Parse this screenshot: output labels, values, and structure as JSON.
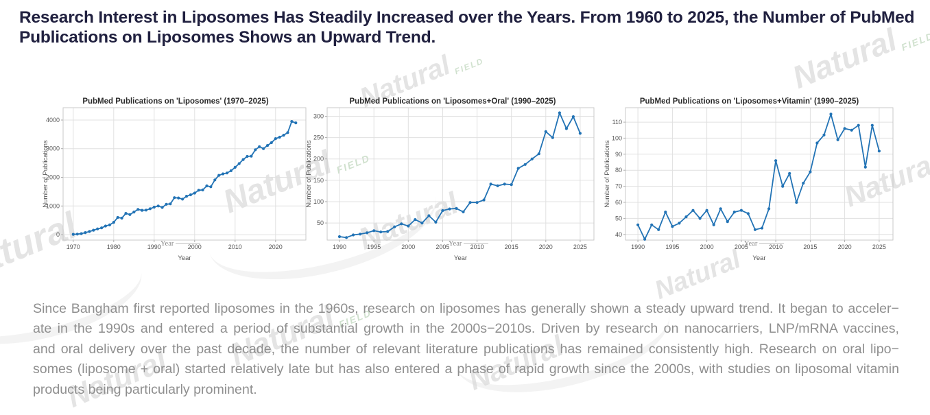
{
  "header": {
    "title": "Research Interest in Liposomes Has Steadily Increased over the Years. From 1960 to 2025, the Number of PubMed Publications on Liposomes Shows an Upward Trend.",
    "color": "#20203f"
  },
  "watermark": {
    "text": "Natural",
    "sub": "FIELD"
  },
  "chart_data": [
    {
      "type": "line",
      "title": "PubMed Publications on 'Liposomes' (1970–2025)",
      "xlabel": "Year",
      "ylabel": "Number of Publications",
      "line_color": "#2273b5",
      "grid": true,
      "years": [
        1970,
        1971,
        1972,
        1973,
        1974,
        1975,
        1976,
        1977,
        1978,
        1979,
        1980,
        1981,
        1982,
        1983,
        1984,
        1985,
        1986,
        1987,
        1988,
        1989,
        1990,
        1991,
        1992,
        1993,
        1994,
        1995,
        1996,
        1997,
        1998,
        1999,
        2000,
        2001,
        2002,
        2003,
        2004,
        2005,
        2006,
        2007,
        2008,
        2009,
        2010,
        2011,
        2012,
        2013,
        2014,
        2015,
        2016,
        2017,
        2018,
        2019,
        2020,
        2021,
        2022,
        2023,
        2024,
        2025
      ],
      "values": [
        10,
        18,
        35,
        70,
        110,
        155,
        200,
        235,
        300,
        340,
        430,
        600,
        575,
        740,
        700,
        790,
        880,
        850,
        855,
        905,
        960,
        1000,
        950,
        1060,
        1075,
        1290,
        1280,
        1240,
        1340,
        1390,
        1450,
        1550,
        1560,
        1700,
        1670,
        1910,
        2070,
        2120,
        2150,
        2230,
        2350,
        2480,
        2620,
        2730,
        2740,
        2960,
        3070,
        3000,
        3110,
        3210,
        3350,
        3400,
        3470,
        3560,
        3950,
        3900
      ],
      "xticks": [
        1970,
        1980,
        1990,
        2000,
        2010,
        2020
      ],
      "yticks": [
        0,
        1000,
        2000,
        3000,
        4000
      ],
      "xlim": [
        1967.5,
        2027.5
      ],
      "ylim": [
        -190,
        4430
      ]
    },
    {
      "type": "line",
      "title": "PubMed Publications on 'Liposomes+Oral' (1990–2025)",
      "xlabel": "Year",
      "ylabel": "Number of Publications",
      "line_color": "#2273b5",
      "grid": true,
      "years": [
        1990,
        1991,
        1992,
        1993,
        1994,
        1995,
        1996,
        1997,
        1998,
        1999,
        2000,
        2001,
        2002,
        2003,
        2004,
        2005,
        2006,
        2007,
        2008,
        2009,
        2010,
        2011,
        2012,
        2013,
        2014,
        2015,
        2016,
        2017,
        2018,
        2019,
        2020,
        2021,
        2022,
        2023,
        2024,
        2025
      ],
      "values": [
        18,
        16,
        22,
        24,
        27,
        32,
        29,
        30,
        41,
        48,
        43,
        58,
        50,
        67,
        52,
        79,
        83,
        84,
        76,
        98,
        98,
        104,
        141,
        137,
        141,
        140,
        178,
        187,
        200,
        212,
        264,
        250,
        308,
        271,
        299,
        260
      ],
      "xticks": [
        1990,
        1995,
        2000,
        2005,
        2010,
        2015,
        2020,
        2025
      ],
      "yticks": [
        50,
        100,
        150,
        200,
        250,
        300
      ],
      "xlim": [
        1988.2,
        2027.0
      ],
      "ylim": [
        10,
        320
      ]
    },
    {
      "type": "line",
      "title": "PubMed Publications on 'Liposomes+Vitamin' (1990–2025)",
      "xlabel": "Year",
      "ylabel": "Number of Publications",
      "line_color": "#2273b5",
      "grid": true,
      "years": [
        1990,
        1991,
        1992,
        1993,
        1994,
        1995,
        1996,
        1997,
        1998,
        1999,
        2000,
        2001,
        2002,
        2003,
        2004,
        2005,
        2006,
        2007,
        2008,
        2009,
        2010,
        2011,
        2012,
        2013,
        2014,
        2015,
        2016,
        2017,
        2018,
        2019,
        2020,
        2021,
        2022,
        2023,
        2024,
        2025
      ],
      "values": [
        46,
        37,
        46,
        43,
        54,
        45,
        47,
        51,
        55,
        50,
        55,
        46,
        56,
        48,
        54,
        55,
        53,
        43,
        44,
        56,
        86,
        70,
        78,
        60,
        72,
        79,
        97,
        102,
        115,
        99,
        106,
        105,
        108,
        82,
        108,
        92
      ],
      "xticks": [
        1990,
        1995,
        2000,
        2005,
        2010,
        2015,
        2020,
        2025
      ],
      "yticks": [
        40,
        50,
        60,
        70,
        80,
        90,
        100,
        110
      ],
      "xlim": [
        1988.2,
        2027.0
      ],
      "ylim": [
        36.5,
        119
      ]
    }
  ],
  "footer": {
    "lines": [
      "Since Bangham first reported liposomes in the 1960s, research on liposomes has generally shown a steady upward trend. It began to acceler−",
      "ate in the 1990s and entered a period of substantial growth in the 2000s−2010s. Driven by research on nanocarriers, LNP/mRNA vaccines,",
      "and oral delivery over the past decade, the number of relevant literature publications has remained consistently high. Research on oral lipo−",
      "somes (liposome + oral) started relatively late but has also entered a phase of rapid growth since the 2000s, with studies on liposomal vitamin",
      "products being particularly prominent."
    ]
  }
}
